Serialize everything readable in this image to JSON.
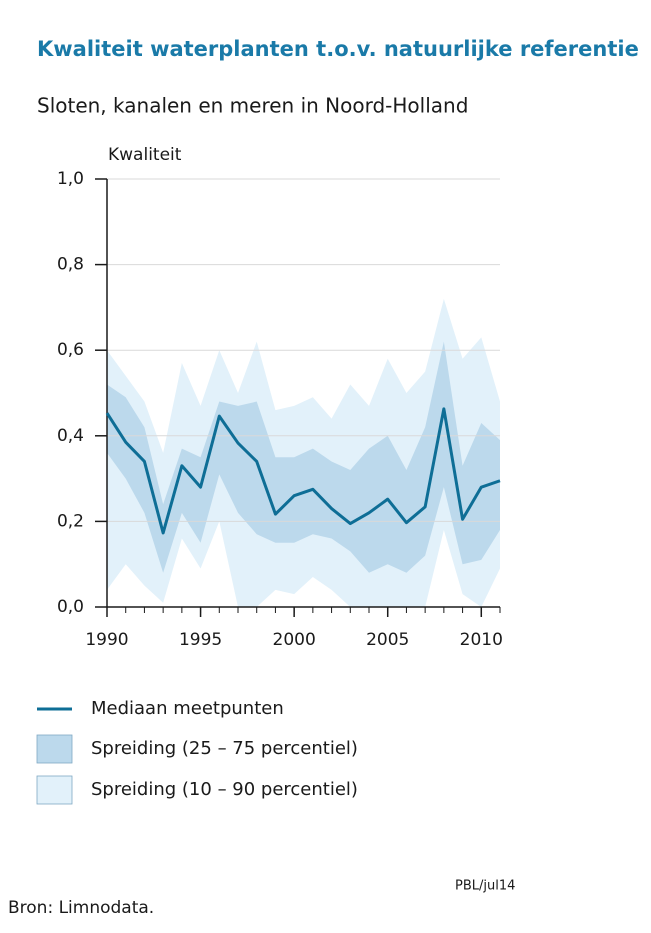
{
  "chart_data": {
    "type": "band-line",
    "title": "Kwaliteit waterplanten t.o.v. natuurlijke referentie",
    "subtitle": "Sloten, kanalen en meren in Noord-Holland",
    "y_label": "Kwaliteit",
    "x": [
      1990,
      1991,
      1992,
      1993,
      1994,
      1995,
      1996,
      1997,
      1998,
      1999,
      2000,
      2001,
      2002,
      2003,
      2004,
      2005,
      2006,
      2007,
      2008,
      2009,
      2010,
      2011
    ],
    "series": [
      {
        "name": "Mediaan meetpunten",
        "color": "#0e6e96",
        "values": [
          0.453,
          0.385,
          0.34,
          0.173,
          0.33,
          0.28,
          0.446,
          0.383,
          0.34,
          0.217,
          0.26,
          0.275,
          0.23,
          0.195,
          0.22,
          0.252,
          0.197,
          0.234,
          0.463,
          0.205,
          0.28,
          0.295
        ]
      }
    ],
    "bands": [
      {
        "name": "Spreiding (10 – 90 percentiel)",
        "color": "#e2f1fa",
        "lower": [
          0.04,
          0.1,
          0.05,
          0.01,
          0.16,
          0.09,
          0.2,
          0.0,
          0.0,
          0.04,
          0.03,
          0.07,
          0.04,
          0.0,
          0.0,
          0.0,
          0.0,
          0.0,
          0.18,
          0.03,
          0.0,
          0.09
        ],
        "upper": [
          0.6,
          0.54,
          0.48,
          0.36,
          0.57,
          0.47,
          0.6,
          0.5,
          0.62,
          0.46,
          0.47,
          0.49,
          0.44,
          0.52,
          0.47,
          0.58,
          0.5,
          0.55,
          0.72,
          0.58,
          0.63,
          0.48
        ]
      },
      {
        "name": "Spreiding (25 – 75 percentiel)",
        "color": "#bcd9ec",
        "lower": [
          0.36,
          0.3,
          0.22,
          0.08,
          0.22,
          0.15,
          0.31,
          0.22,
          0.17,
          0.15,
          0.15,
          0.17,
          0.16,
          0.13,
          0.08,
          0.1,
          0.08,
          0.12,
          0.28,
          0.1,
          0.11,
          0.18
        ],
        "upper": [
          0.52,
          0.49,
          0.42,
          0.24,
          0.37,
          0.35,
          0.48,
          0.47,
          0.48,
          0.35,
          0.35,
          0.37,
          0.34,
          0.32,
          0.37,
          0.4,
          0.32,
          0.42,
          0.62,
          0.33,
          0.43,
          0.39
        ]
      }
    ],
    "xlim": [
      1990,
      2011
    ],
    "xticks": [
      1990,
      1995,
      2000,
      2005,
      2010
    ],
    "ylim": [
      0,
      1
    ],
    "yticks": [
      {
        "value": 0,
        "label": "0,0"
      },
      {
        "value": 0.2,
        "label": "0,2"
      },
      {
        "value": 0.4,
        "label": "0,4"
      },
      {
        "value": 0.6,
        "label": "0,6"
      },
      {
        "value": 0.8,
        "label": "0,8"
      },
      {
        "value": 1,
        "label": "1,0"
      }
    ],
    "grid": true,
    "source": "Bron: Limnodata.",
    "credit": "PBL/jul14"
  }
}
